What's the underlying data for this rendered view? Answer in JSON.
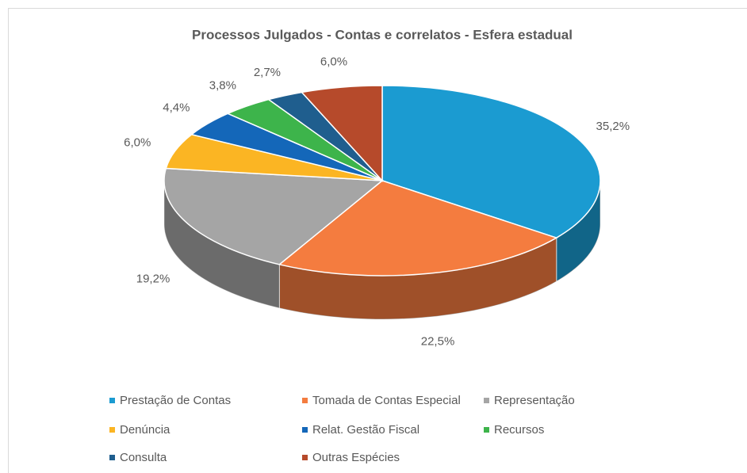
{
  "chart_data": {
    "type": "pie3d",
    "title": "Processos Julgados - Contas e correlatos - Esfera estadual",
    "categories": [
      "Prestação de Contas",
      "Tomada de Contas Especial",
      "Representação",
      "Denúncia",
      "Relat. Gestão Fiscal",
      "Recursos",
      "Consulta",
      "Outras Espécies"
    ],
    "values": [
      35.2,
      22.5,
      19.2,
      6.0,
      4.4,
      3.8,
      2.7,
      6.0
    ],
    "value_labels": [
      "35,2%",
      "22,5%",
      "19,2%",
      "6,0%",
      "4,4%",
      "3,8%",
      "2,7%",
      "6,0%"
    ],
    "colors": [
      "#1b9bd1",
      "#f47c3f",
      "#a5a5a5",
      "#fbb523",
      "#1467b9",
      "#3db44b",
      "#1f5e8e",
      "#b64a2b"
    ],
    "legend": "bottom"
  }
}
